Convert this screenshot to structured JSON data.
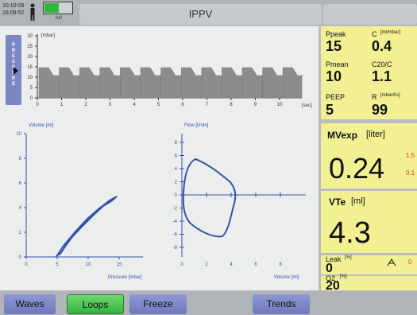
{
  "status": {
    "time1": "10:10:09",
    "time2": "16:09:52",
    "battery_text": "full",
    "mode": "IPPV",
    "icons": [
      "person-icon",
      "battery-icon"
    ]
  },
  "pressure_tab": {
    "label": "PRESSURE"
  },
  "pressure_wave": {
    "unit": "[mbar]",
    "xunit": "[sec]",
    "yticks": [
      "30",
      "25",
      "20",
      "15",
      "10",
      "5",
      "0"
    ],
    "xticks": [
      "0",
      "1",
      "2",
      "3",
      "4",
      "5",
      "6",
      "7",
      "8",
      "9",
      "10"
    ],
    "fill_color": "#8c8c8c"
  },
  "loops": {
    "volume_axis": "Volume [ml]",
    "pressure_axis": "Pressure [mbar]",
    "flow_axis": "Flow [l/min]",
    "volume_x_axis": "Volume [ml]",
    "v_yticks": [
      "10",
      "8",
      "6",
      "4",
      "2",
      "0"
    ],
    "v_xticks": [
      "0",
      "5",
      "10",
      "15"
    ],
    "f_yticks": [
      "8",
      "6",
      "4",
      "2",
      "0",
      "-2",
      "-4",
      "-6",
      "-8"
    ],
    "f_xticks": [
      "0",
      "2",
      "4",
      "6",
      "8"
    ],
    "line_color": "#3653a8"
  },
  "params": {
    "ppeak_label": "Ppeak",
    "ppeak_value": "15",
    "c_label": "C",
    "c_unit": "[ml/mbar]",
    "c_value": "0.4",
    "pmean_label": "Pmean",
    "pmean_value": "10",
    "c20c_label": "C20/C",
    "c20c_value": "1.1",
    "peep_label": "PEEP",
    "peep_value": "5",
    "r_label": "R",
    "r_unit": "[mbar/l/s]",
    "r_value": "99",
    "mv_label": "MVexp",
    "mv_unit": "[liter]",
    "mv_value": "0.24",
    "mv_high": "1.5",
    "mv_low": "0.1",
    "vte_label": "VTe",
    "vte_unit": "[ml]",
    "vte_value": "4.3",
    "leak_label": "Leak",
    "leak_unit": "[%]",
    "leak_value": "0",
    "leak_extra": "0",
    "o2_label": "O2",
    "o2_unit": "[%]",
    "o2_value": "20",
    "alarm_color": "#d23a1e",
    "panel_color": "#f3f094"
  },
  "buttons": {
    "waves": "Waves",
    "loops": "Loops",
    "freeze": "Freeze",
    "trends": "Trends",
    "active_color": "#36b43f"
  }
}
